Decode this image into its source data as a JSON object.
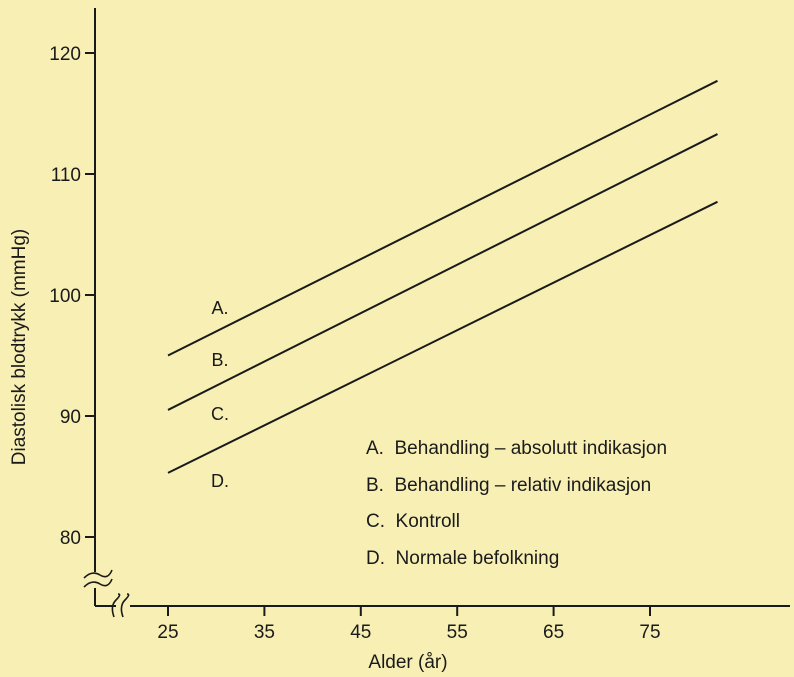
{
  "chart_data": {
    "type": "line",
    "xlabel": "Alder (år)",
    "ylabel": "Diastolisk blodtrykk (mmHg)",
    "x_ticks": [
      25,
      35,
      45,
      55,
      65,
      75
    ],
    "y_ticks": [
      80,
      90,
      100,
      110,
      120
    ],
    "xlim": [
      17.5,
      88
    ],
    "ylim": [
      74.5,
      123.5
    ],
    "axis_breaks": true,
    "grid": false,
    "legend_position": "lower-right",
    "series": [
      {
        "name": "A",
        "label": "A.",
        "legend": "A.  Behandling – absolutt indikasjon",
        "x": [
          25,
          82
        ],
        "y": [
          95,
          117.7
        ]
      },
      {
        "name": "B",
        "label": "B.",
        "legend": "B.  Behandling – relativ indikasjon",
        "x": [
          25,
          82
        ],
        "y": [
          90.5,
          113.3
        ]
      },
      {
        "name": "C",
        "label": "C.",
        "legend": "C.  Kontroll",
        "x": [
          25,
          82
        ],
        "y": [
          85.3,
          107.7
        ]
      },
      {
        "name": "D",
        "label": "D.",
        "legend": "D.  Normale befolkning"
      }
    ]
  },
  "colors": {
    "background": "#f7efb4",
    "ink": "#1a1a1a"
  }
}
